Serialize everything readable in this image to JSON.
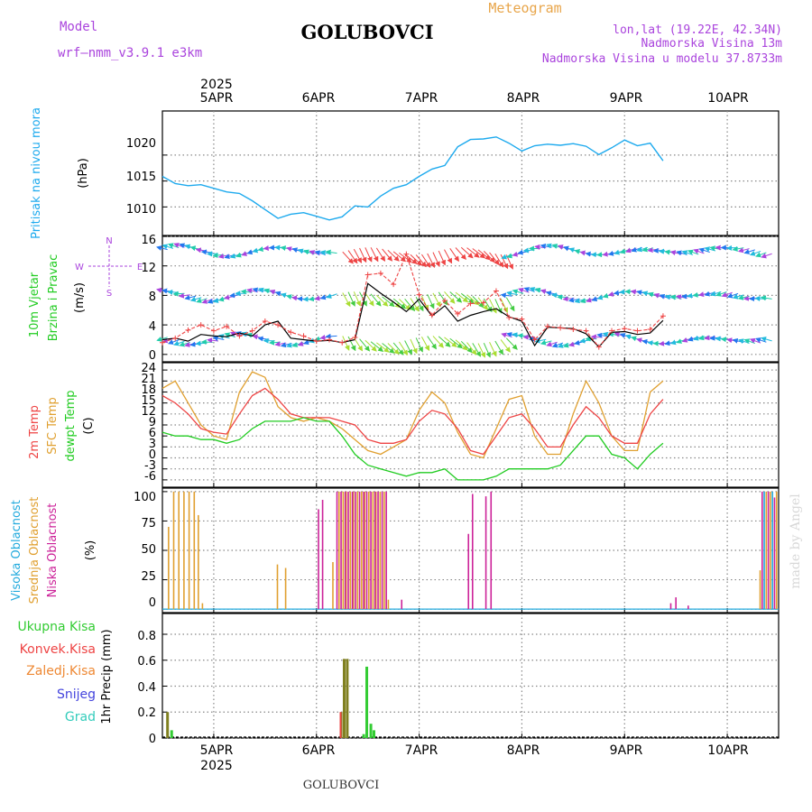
{
  "header": {
    "model_label": "Model",
    "model_name": "wrf—nmm_v3.9.1  e3km",
    "title": "GOLUBOVCI",
    "meteogram": "Meteogram",
    "lonlat": "lon,lat (19.22E, 42.34N)",
    "altitude": "Nadmorska Visina 13m",
    "model_altitude": "Nadmorska Visina u modelu 37.8733m",
    "footer": "GOLUBOVCI",
    "watermark": "made by Angel"
  },
  "colors": {
    "pressure": "#1eaaee",
    "temp2m": "#ee4444",
    "sfc": "#e0a030",
    "dewpt": "#22cc22",
    "wind_speed": "#000000",
    "gust": "#ee4444",
    "purple": "#aa44dd",
    "orange": "#e8a54a",
    "high_cloud": "#22aadd",
    "mid_cloud": "#e0a030",
    "low_cloud": "#cc2299",
    "total_precip": "#33cc33",
    "conv_precip": "#ee4444",
    "frozen_precip": "#ee8833",
    "snow": "#4444dd",
    "hail": "#33ccbb",
    "precip_bar": "#808020"
  },
  "chart_data": [
    {
      "type": "line",
      "title": "Pritisak na nivou mora",
      "ylabel": "(hPa)",
      "ylim": [
        1004.5,
        1028.5
      ],
      "yticks": [
        "1010",
        "1015",
        "1020"
      ],
      "x_start": 4.5,
      "x_step_hours": 3,
      "x_axis_days": [
        "5APR",
        "6APR",
        "7APR",
        "8APR",
        "9APR",
        "10APR"
      ],
      "year": "2025",
      "series": [
        {
          "name": "MSLP",
          "values": [
            1015.9,
            1014.5,
            1014.1,
            1014.3,
            1013.6,
            1012.9,
            1012.6,
            1011.2,
            1009.5,
            1007.8,
            1008.6,
            1008.9,
            1008.2,
            1007.5,
            1008.1,
            1010.2,
            1010.0,
            1012.1,
            1013.6,
            1014.3,
            1015.9,
            1017.3,
            1018.0,
            1021.6,
            1023.0,
            1023.1,
            1023.5,
            1022.3,
            1020.8,
            1021.8,
            1022.1,
            1021.9,
            1022.2,
            1021.7,
            1020.1,
            1021.4,
            1022.9,
            1021.8,
            1022.3,
            1018.9
          ]
        }
      ]
    },
    {
      "type": "line",
      "title": "10m Vjetar",
      "title2": "Brzina i Pravac",
      "ylabel": "(m/s)",
      "ylim": [
        -1,
        16
      ],
      "yticks": [
        "0",
        "4",
        "8",
        "12",
        "16"
      ],
      "compass": {
        "n": "N",
        "s": "S",
        "w": "W",
        "e": "E"
      },
      "series": [
        {
          "name": "speed",
          "values": [
            2.0,
            2.2,
            1.8,
            2.7,
            2.5,
            2.4,
            2.9,
            2.5,
            4.0,
            4.5,
            2.2,
            2.0,
            1.8,
            1.9,
            1.6,
            2.0,
            9.6,
            8.3,
            7.1,
            5.8,
            7.5,
            5.2,
            6.6,
            4.5,
            5.3,
            5.8,
            6.2,
            5.1,
            4.5,
            1.2,
            3.7,
            3.6,
            3.5,
            2.8,
            1.0,
            3.0,
            3.1,
            2.7,
            2.9,
            4.6
          ]
        },
        {
          "name": "gust",
          "values": [
            1.6,
            2.2,
            3.3,
            4.0,
            3.2,
            3.8,
            2.5,
            3.2,
            4.5,
            4.0,
            3.0,
            2.5,
            1.8,
            2.0,
            1.6,
            2.3,
            10.8,
            11.0,
            9.5,
            13.6,
            8.1,
            5.3,
            7.3,
            5.5,
            6.9,
            7.0,
            8.6,
            5.0,
            4.8,
            2.0,
            3.8,
            3.6,
            3.4,
            3.2,
            1.0,
            3.2,
            3.5,
            3.2,
            3.4,
            5.2
          ]
        }
      ]
    },
    {
      "type": "line",
      "titles": [
        "2m Temp",
        "SFC Temp",
        "dewpt Temp"
      ],
      "ylabel": "(C)",
      "ylim": [
        -8,
        26
      ],
      "yticks": [
        "-6",
        "-3",
        "0",
        "3",
        "6",
        "9",
        "12",
        "15",
        "18",
        "21",
        "24"
      ],
      "series": [
        {
          "name": "2m Temp",
          "values": [
            17,
            15,
            12,
            8,
            7,
            6.5,
            12,
            17,
            19,
            16,
            12,
            11,
            11,
            11,
            10,
            9,
            5,
            4,
            4,
            5,
            10,
            13,
            12,
            8,
            2,
            1,
            6,
            11,
            12,
            8,
            3,
            3,
            9,
            14,
            11,
            6,
            4,
            4,
            12,
            16
          ]
        },
        {
          "name": "SFC Temp",
          "values": [
            19,
            21,
            15,
            9,
            6,
            5,
            18,
            23.5,
            22,
            14,
            11,
            10,
            11,
            10,
            8,
            5,
            2,
            1,
            3,
            5,
            13,
            18,
            15,
            7,
            1,
            0,
            8,
            16,
            17,
            6,
            1,
            1,
            12,
            21,
            15,
            6,
            2,
            2,
            18,
            21
          ]
        },
        {
          "name": "dewpt Temp",
          "values": [
            7,
            6,
            6,
            5,
            5,
            4,
            5,
            8,
            10,
            10,
            10,
            11,
            10,
            10,
            6,
            1,
            -2,
            -3,
            -4,
            -5,
            -4,
            -4,
            -3,
            -6,
            -6,
            -6,
            -5,
            -3,
            -3,
            -3,
            -3,
            -2,
            2,
            6,
            6,
            1,
            0,
            -3,
            1,
            4
          ]
        }
      ]
    },
    {
      "type": "bar",
      "titles": [
        "Visoka Oblacnost",
        "Srednja Oblacnost",
        "Niska Oblacnost"
      ],
      "ylabel": "(%)",
      "ylim": [
        -3,
        103
      ],
      "yticks": [
        "0",
        "25",
        "50",
        "75",
        "100"
      ],
      "series": [
        {
          "name": "Srednja Oblacnost",
          "points": [
            [
              4.56,
              70
            ],
            [
              4.61,
              100
            ],
            [
              4.66,
              100
            ],
            [
              4.71,
              100
            ],
            [
              4.76,
              100
            ],
            [
              4.81,
              100
            ],
            [
              4.85,
              80
            ],
            [
              4.89,
              5
            ],
            [
              5.62,
              38
            ],
            [
              5.7,
              35
            ],
            [
              6.16,
              40
            ],
            [
              6.22,
              100
            ],
            [
              6.26,
              100
            ],
            [
              6.29,
              100
            ],
            [
              6.33,
              100
            ],
            [
              6.36,
              100
            ],
            [
              6.4,
              100
            ],
            [
              6.44,
              100
            ],
            [
              6.47,
              100
            ],
            [
              6.51,
              100
            ],
            [
              6.55,
              100
            ],
            [
              6.58,
              100
            ],
            [
              6.62,
              100
            ],
            [
              6.66,
              100
            ],
            [
              6.7,
              8
            ],
            [
              10.32,
              33
            ],
            [
              10.38,
              100
            ],
            [
              10.42,
              100
            ],
            [
              10.48,
              100
            ]
          ]
        },
        {
          "name": "Niska Oblacnost",
          "points": [
            [
              6.02,
              85
            ],
            [
              6.06,
              93
            ],
            [
              6.2,
              100
            ],
            [
              6.24,
              100
            ],
            [
              6.28,
              100
            ],
            [
              6.31,
              100
            ],
            [
              6.35,
              100
            ],
            [
              6.38,
              100
            ],
            [
              6.42,
              100
            ],
            [
              6.46,
              100
            ],
            [
              6.49,
              100
            ],
            [
              6.53,
              100
            ],
            [
              6.57,
              100
            ],
            [
              6.6,
              100
            ],
            [
              6.64,
              100
            ],
            [
              6.68,
              100
            ],
            [
              6.83,
              8
            ],
            [
              7.48,
              64
            ],
            [
              7.52,
              98
            ],
            [
              7.65,
              96
            ],
            [
              7.7,
              100
            ],
            [
              9.45,
              5
            ],
            [
              9.5,
              10
            ],
            [
              9.62,
              3
            ],
            [
              10.34,
              100
            ],
            [
              10.4,
              100
            ],
            [
              10.46,
              95
            ]
          ]
        },
        {
          "name": "Visoka Oblacnost",
          "points": [
            [
              10.36,
              100
            ],
            [
              10.44,
              100
            ]
          ]
        }
      ]
    },
    {
      "type": "bar",
      "titles": [
        "Ukupna Kisa",
        "Konvek.Kisa",
        "Zaledj.Kisa",
        "Snijeg",
        "Grad"
      ],
      "ylabel": "1hr Precip (mm)",
      "ylim": [
        0,
        0.96
      ],
      "yticks": [
        "0",
        "0.2",
        "0.4",
        "0.6",
        "0.8"
      ],
      "series": [
        {
          "name": "Ukupna Kisa",
          "points": [
            [
              4.55,
              0.2
            ],
            [
              4.59,
              0.06
            ],
            [
              6.24,
              0.2
            ],
            [
              6.27,
              0.61
            ],
            [
              6.3,
              0.61
            ],
            [
              6.46,
              0.03
            ],
            [
              6.49,
              0.55
            ],
            [
              6.53,
              0.11
            ],
            [
              6.56,
              0.06
            ]
          ]
        }
      ]
    }
  ]
}
